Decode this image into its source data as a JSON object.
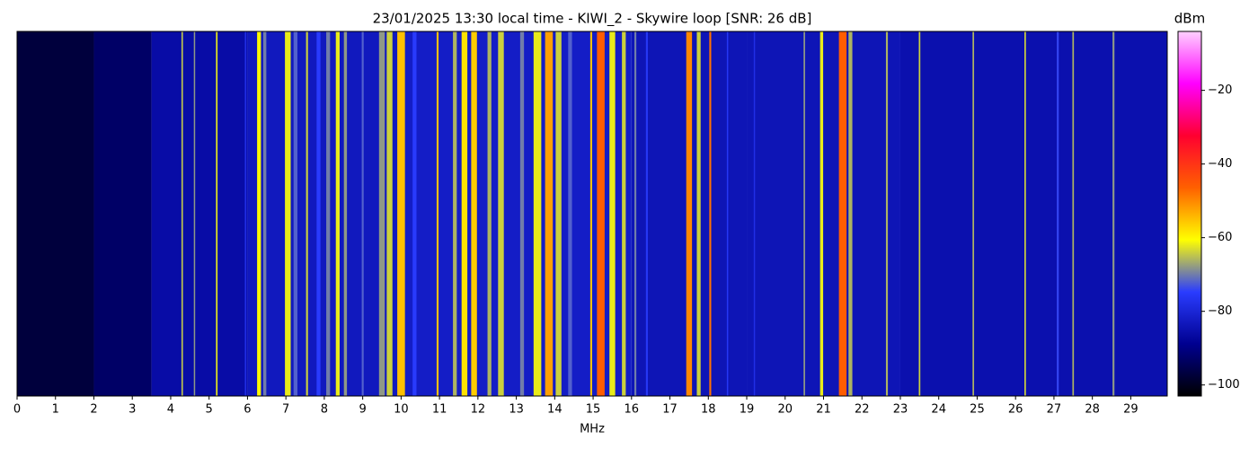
{
  "chart_data": {
    "type": "waterfall",
    "title": "23/01/2025 13:30 local time - KIWI_2 - Skywire loop [SNR: 26 dB]",
    "x_label": "MHz",
    "colorbar_label": "dBm",
    "xlim": [
      0,
      29.95
    ],
    "xticks": [
      0,
      1,
      2,
      3,
      4,
      5,
      6,
      7,
      8,
      9,
      10,
      11,
      12,
      13,
      14,
      15,
      16,
      17,
      18,
      19,
      20,
      21,
      22,
      23,
      24,
      25,
      26,
      27,
      28,
      29
    ],
    "clim": [
      -103,
      -4
    ],
    "cticks": [
      {
        "value": -20,
        "label": "−20"
      },
      {
        "value": -40,
        "label": "−40"
      },
      {
        "value": -60,
        "label": "−60"
      },
      {
        "value": -80,
        "label": "−80"
      },
      {
        "value": -100,
        "label": "−100"
      }
    ],
    "colormap": [
      "#000000",
      "#000090",
      "#2a3cff",
      "#ffff00",
      "#ff6000",
      "#ff0030",
      "#ff00ff",
      "#ffd0ff"
    ],
    "floor_bins": [
      0,
      2,
      3.5,
      6,
      10,
      16,
      19,
      23,
      29.95
    ],
    "floor_values": [
      -97,
      -93,
      -86,
      -83,
      -82,
      -84,
      -84,
      -85
    ],
    "x": [
      4.3,
      4.62,
      5.2,
      5.95,
      6.3,
      6.45,
      7.05,
      7.25,
      7.55,
      7.85,
      8.1,
      8.35,
      8.55,
      9.0,
      9.5,
      9.7,
      10.0,
      10.35,
      10.95,
      11.4,
      11.65,
      11.9,
      12.3,
      12.6,
      13.15,
      13.55,
      13.85,
      14.1,
      14.4,
      14.95,
      15.2,
      15.5,
      15.8,
      16.1,
      16.4,
      17.5,
      17.75,
      18.05,
      18.5,
      19.2,
      20.5,
      20.95,
      21.5,
      21.7,
      22.65,
      23.5,
      24.9,
      26.25,
      27.1,
      27.5,
      28.55
    ],
    "values": [
      -65,
      -68,
      -62,
      -78,
      -60,
      -70,
      -62,
      -72,
      -64,
      -75,
      -70,
      -62,
      -68,
      -72,
      -68,
      -64,
      -55,
      -75,
      -55,
      -66,
      -58,
      -56,
      -66,
      -64,
      -70,
      -62,
      -52,
      -64,
      -72,
      -55,
      -46,
      -62,
      -64,
      -70,
      -76,
      -50,
      -64,
      -48,
      -76,
      -78,
      -68,
      -62,
      -46,
      -66,
      -66,
      -64,
      -66,
      -64,
      -74,
      -66,
      -68
    ],
    "widths": [
      0.04,
      0.03,
      0.04,
      0.04,
      0.1,
      0.08,
      0.15,
      0.1,
      0.05,
      0.1,
      0.1,
      0.1,
      0.08,
      0.05,
      0.15,
      0.15,
      0.2,
      0.1,
      0.05,
      0.1,
      0.15,
      0.15,
      0.1,
      0.15,
      0.1,
      0.2,
      0.2,
      0.15,
      0.1,
      0.05,
      0.2,
      0.15,
      0.1,
      0.05,
      0.05,
      0.15,
      0.1,
      0.05,
      0.03,
      0.03,
      0.04,
      0.08,
      0.2,
      0.1,
      0.05,
      0.04,
      0.04,
      0.04,
      0.05,
      0.04,
      0.05
    ]
  }
}
